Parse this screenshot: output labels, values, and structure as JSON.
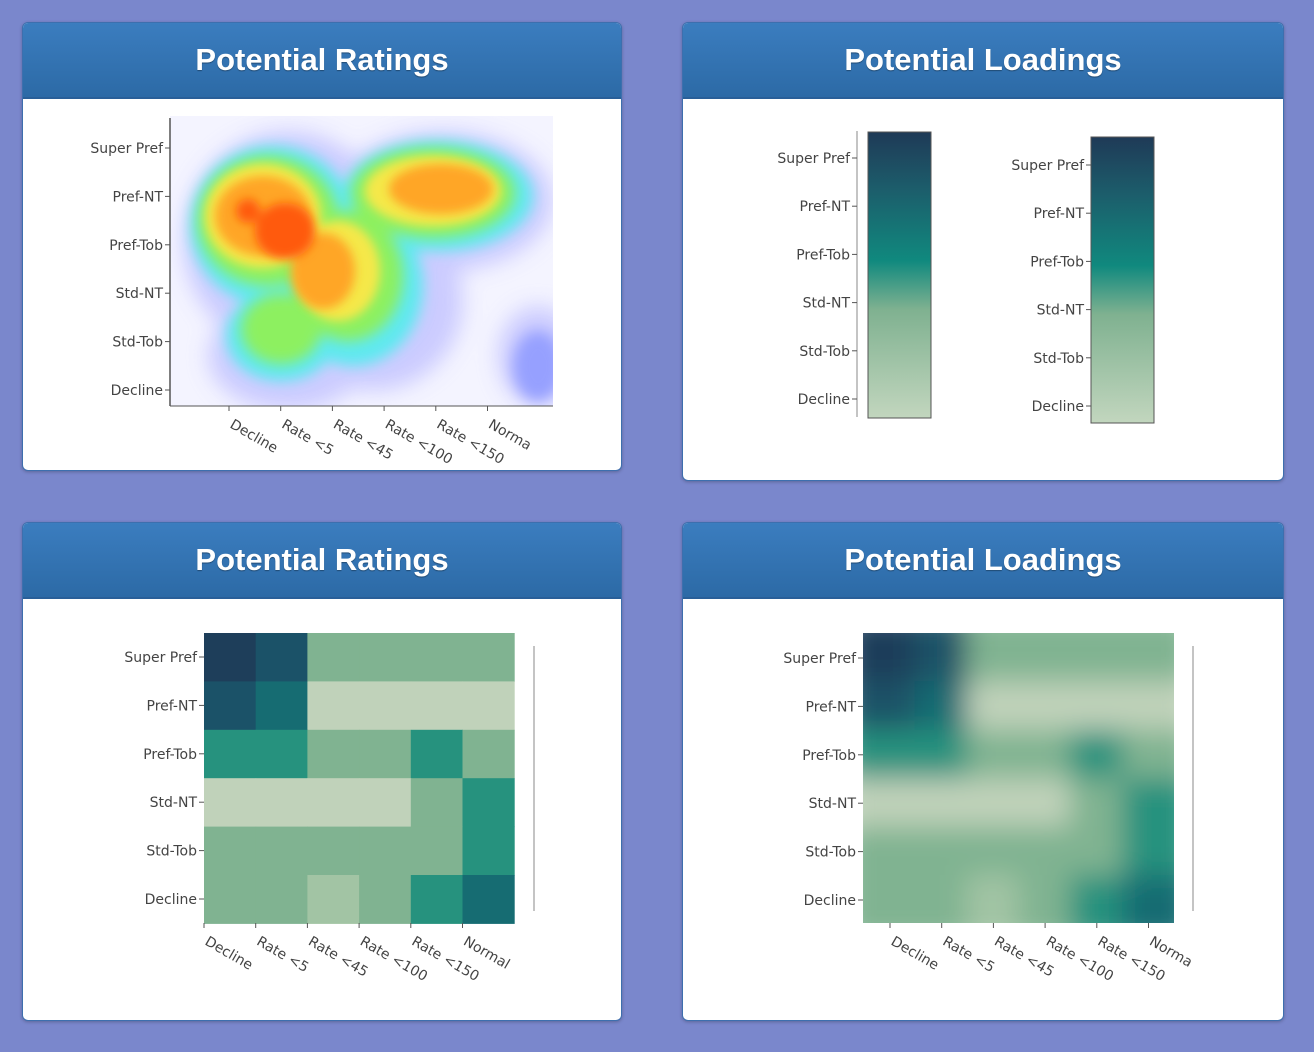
{
  "panels": [
    {
      "title": "Potential Ratings"
    },
    {
      "title": "Potential Loadings"
    },
    {
      "title": "Potential Ratings"
    },
    {
      "title": "Potential Loadings"
    }
  ],
  "colors": {
    "background": "#7a87cc",
    "header": "#3072b1",
    "teal_dark": "#1e3d59",
    "teal_mid": "#148a80",
    "green_light": "#c0d6bf"
  },
  "chart_data": [
    {
      "type": "heatmap",
      "style": "smoothed jet density",
      "x": [
        "Decline",
        "Rate <5",
        "Rate <45",
        "Rate <100",
        "Rate <150",
        "Normal"
      ],
      "y": [
        "Super Pref",
        "Pref-NT",
        "Pref-Tob",
        "Std-NT",
        "Std-Tob",
        "Decline"
      ]
    },
    {
      "type": "heatmap",
      "style": "colorbar pair",
      "y": [
        "Super Pref",
        "Pref-NT",
        "Pref-Tob",
        "Std-NT",
        "Std-Tob",
        "Decline"
      ]
    },
    {
      "type": "heatmap",
      "x": [
        "Decline",
        "Rate <5",
        "Rate <45",
        "Rate <100",
        "Rate <150",
        "Normal"
      ],
      "y": [
        "Super Pref",
        "Pref-NT",
        "Pref-Tob",
        "Std-NT",
        "Std-Tob",
        "Decline"
      ],
      "z": [
        [
          10,
          9,
          4,
          4,
          4,
          4
        ],
        [
          9,
          8,
          1,
          1,
          1,
          1
        ],
        [
          6,
          6,
          4,
          4,
          6,
          4
        ],
        [
          1,
          1,
          1,
          1,
          4,
          6
        ],
        [
          4,
          4,
          4,
          4,
          4,
          6
        ],
        [
          4,
          4,
          3,
          4,
          6,
          8
        ]
      ]
    },
    {
      "type": "heatmap",
      "style": "interpolated",
      "x": [
        "Decline",
        "Rate <5",
        "Rate <45",
        "Rate <100",
        "Rate <150",
        "Normal"
      ],
      "y": [
        "Super Pref",
        "Pref-NT",
        "Pref-Tob",
        "Std-NT",
        "Std-Tob",
        "Decline"
      ]
    }
  ]
}
